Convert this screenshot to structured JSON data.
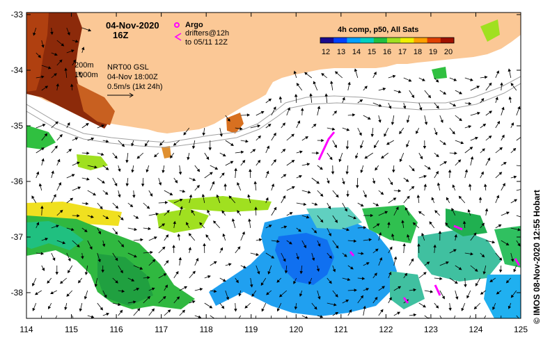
{
  "header": {
    "date": "04-Nov-2020",
    "time": "16Z",
    "argo_label": "Argo",
    "drifters_line1": "drifters@12h",
    "drifters_line2": "to 05/11 12Z"
  },
  "legend": {
    "title": "4h comp, p50, All Sats",
    "ticks": [
      "12",
      "13",
      "14",
      "15",
      "16",
      "17",
      "18",
      "19",
      "20"
    ],
    "colors": [
      "#1a0a8c",
      "#0040ff",
      "#00a0ff",
      "#00d0c0",
      "#20c040",
      "#a0e020",
      "#f0f000",
      "#ffa000",
      "#e04000",
      "#a01000"
    ]
  },
  "currents_info": {
    "isobath1": "200m",
    "isobath2": "1000m",
    "product": "NRT00 GSL",
    "valid": "04-Nov 18:00Z",
    "scale": "0.5m/s (1kt 24h)"
  },
  "axes": {
    "x_ticks": [
      "114",
      "115",
      "116",
      "117",
      "118",
      "119",
      "120",
      "121",
      "122",
      "123",
      "124",
      "125"
    ],
    "y_ticks": [
      "-33",
      "-34",
      "-35",
      "-36",
      "-37",
      "-38"
    ]
  },
  "credit": "© IMOS 08-Nov-2020 12:55 Hobart",
  "colors": {
    "land": "#fbc896",
    "argo": "#ff00ff",
    "drifter": "#ff00ff"
  }
}
